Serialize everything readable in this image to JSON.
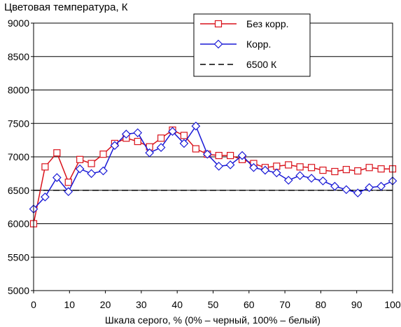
{
  "chart_data": {
    "type": "line",
    "title": "Цветовая температура, К",
    "xlabel": "Шкала серого, % (0% – черный, 100% – белый)",
    "ylabel": "",
    "xlim": [
      0,
      100
    ],
    "ylim": [
      5000,
      9000
    ],
    "x_ticks": [
      "0",
      "10",
      "20",
      "30",
      "40",
      "50",
      "60",
      "70",
      "80",
      "90",
      "100"
    ],
    "y_ticks": [
      "5000",
      "5500",
      "6000",
      "6500",
      "7000",
      "7500",
      "8000",
      "8500",
      "9000"
    ],
    "grid": true,
    "legend_position": "top-right",
    "reference_line": {
      "name": "6500 К",
      "value": 6500,
      "color": "#000000",
      "style": "dashed"
    },
    "series": [
      {
        "name": "Без корр.",
        "color": "#d9121b",
        "marker": "square",
        "x": [
          0,
          3.2,
          6.5,
          9.7,
          12.9,
          16.1,
          19.4,
          22.6,
          25.8,
          29.0,
          32.3,
          35.5,
          38.7,
          41.9,
          45.2,
          48.4,
          51.6,
          54.8,
          58.1,
          61.3,
          64.5,
          67.7,
          71.0,
          74.2,
          77.4,
          80.6,
          83.9,
          87.1,
          90.3,
          93.5,
          96.8,
          100
        ],
        "values": [
          6000,
          6850,
          7060,
          6620,
          6960,
          6900,
          7040,
          7200,
          7280,
          7230,
          7150,
          7280,
          7400,
          7320,
          7120,
          7040,
          7020,
          7020,
          6960,
          6900,
          6840,
          6860,
          6880,
          6850,
          6840,
          6800,
          6780,
          6810,
          6790,
          6840,
          6820,
          6820
        ]
      },
      {
        "name": "Корр.",
        "color": "#1a1ad6",
        "marker": "diamond",
        "x": [
          0,
          3.2,
          6.5,
          9.7,
          12.9,
          16.1,
          19.4,
          22.6,
          25.8,
          29.0,
          32.3,
          35.5,
          38.7,
          41.9,
          45.2,
          48.4,
          51.6,
          54.8,
          58.1,
          61.3,
          64.5,
          67.7,
          71.0,
          74.2,
          77.4,
          80.6,
          83.9,
          87.1,
          90.3,
          93.5,
          96.8,
          100
        ],
        "values": [
          6220,
          6400,
          6690,
          6480,
          6820,
          6750,
          6790,
          7170,
          7340,
          7360,
          7060,
          7140,
          7380,
          7200,
          7460,
          7040,
          6860,
          6880,
          7020,
          6840,
          6800,
          6760,
          6650,
          6720,
          6680,
          6640,
          6560,
          6510,
          6460,
          6540,
          6560,
          6640
        ]
      }
    ]
  }
}
